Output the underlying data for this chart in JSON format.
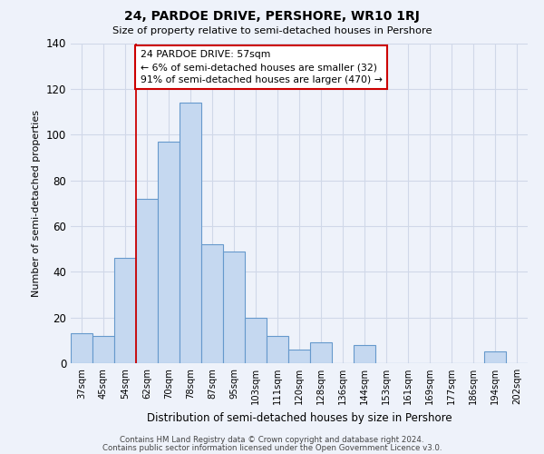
{
  "title": "24, PARDOE DRIVE, PERSHORE, WR10 1RJ",
  "subtitle": "Size of property relative to semi-detached houses in Pershore",
  "xlabel": "Distribution of semi-detached houses by size in Pershore",
  "ylabel": "Number of semi-detached properties",
  "bar_labels": [
    "37sqm",
    "45sqm",
    "54sqm",
    "62sqm",
    "70sqm",
    "78sqm",
    "87sqm",
    "95sqm",
    "103sqm",
    "111sqm",
    "120sqm",
    "128sqm",
    "136sqm",
    "144sqm",
    "153sqm",
    "161sqm",
    "169sqm",
    "177sqm",
    "186sqm",
    "194sqm",
    "202sqm"
  ],
  "bar_values": [
    13,
    12,
    46,
    72,
    97,
    114,
    52,
    49,
    20,
    12,
    6,
    9,
    0,
    8,
    0,
    0,
    0,
    0,
    0,
    5,
    0
  ],
  "bar_color": "#c5d8f0",
  "bar_edge_color": "#6699cc",
  "ylim": [
    0,
    140
  ],
  "yticks": [
    0,
    20,
    40,
    60,
    80,
    100,
    120,
    140
  ],
  "grid_color": "#d0d8e8",
  "background_color": "#eef2fa",
  "red_line_x": 2.5,
  "annotation_box_text_line1": "24 PARDOE DRIVE: 57sqm",
  "annotation_box_text_line2": "← 6% of semi-detached houses are smaller (32)",
  "annotation_box_text_line3": "91% of semi-detached houses are larger (470) →",
  "annotation_box_color": "#ffffff",
  "annotation_box_edge_color": "#cc0000",
  "footer_line1": "Contains HM Land Registry data © Crown copyright and database right 2024.",
  "footer_line2": "Contains public sector information licensed under the Open Government Licence v3.0."
}
